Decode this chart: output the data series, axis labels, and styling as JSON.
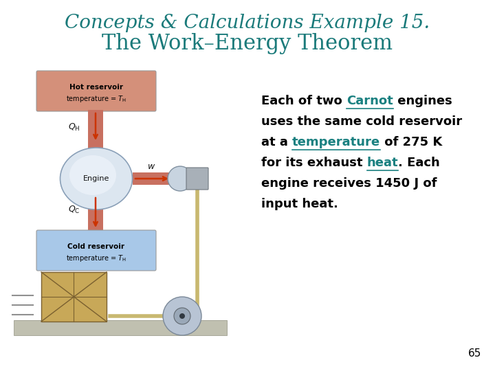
{
  "title_line1": "Concepts & Calculations Example 15.",
  "title_line2": "The Work–Energy Theorem",
  "title_color": "#1a7a7a",
  "title_fontsize1": 20,
  "title_fontsize2": 22,
  "body_fontsize": 13,
  "page_number": "65",
  "background_color": "#ffffff",
  "hot_reservoir_color": "#d4907a",
  "cold_reservoir_color": "#a8c8e8",
  "engine_face_color": "#c8d8e8",
  "engine_edge_color": "#9ab0c8",
  "arrow_color": "#cc3300",
  "pipe_color": "#c87060",
  "rope_color": "#c8b870",
  "piston_color": "#a8b0b8",
  "pulley_color": "#b0b8c8",
  "crate_color": "#c8a858",
  "table_color": "#c0c0b0",
  "teal_color": "#1a8080"
}
